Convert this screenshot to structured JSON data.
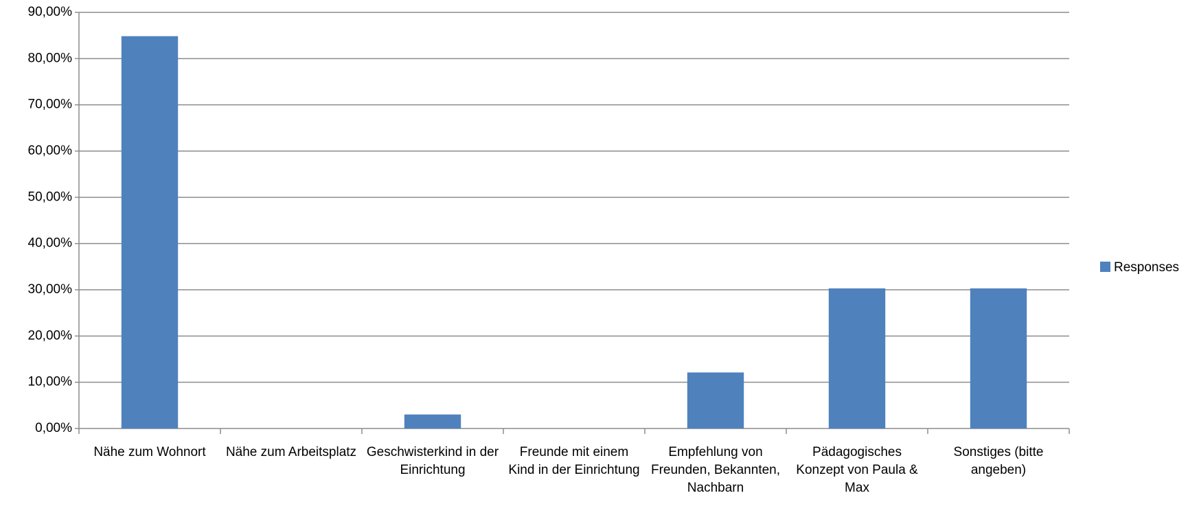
{
  "chart_data": {
    "type": "bar",
    "categories": [
      "Nähe zum Wohnort",
      "Nähe zum Arbeitsplatz",
      "Geschwisterkind in der Einrichtung",
      "Freunde mit einem Kind in der Einrichtung",
      "Empfehlung von Freunden, Bekannten, Nachbarn",
      "Pädagogisches Konzept von Paula & Max",
      "Sonstiges (bitte angeben)"
    ],
    "series": [
      {
        "name": "Responses",
        "color": "#4f81bd",
        "values": [
          84.85,
          0,
          3.03,
          0,
          12.12,
          30.3,
          30.3
        ]
      }
    ],
    "ylim": [
      0,
      90
    ],
    "yticks": [
      {
        "value": 0,
        "label": "0,00%"
      },
      {
        "value": 10,
        "label": "10,00%"
      },
      {
        "value": 20,
        "label": "20,00%"
      },
      {
        "value": 30,
        "label": "30,00%"
      },
      {
        "value": 40,
        "label": "40,00%"
      },
      {
        "value": 50,
        "label": "50,00%"
      },
      {
        "value": 60,
        "label": "60,00%"
      },
      {
        "value": 70,
        "label": "70,00%"
      },
      {
        "value": 80,
        "label": "80,00%"
      },
      {
        "value": 90,
        "label": "90,00%"
      }
    ],
    "grid": true,
    "legend": "right"
  }
}
